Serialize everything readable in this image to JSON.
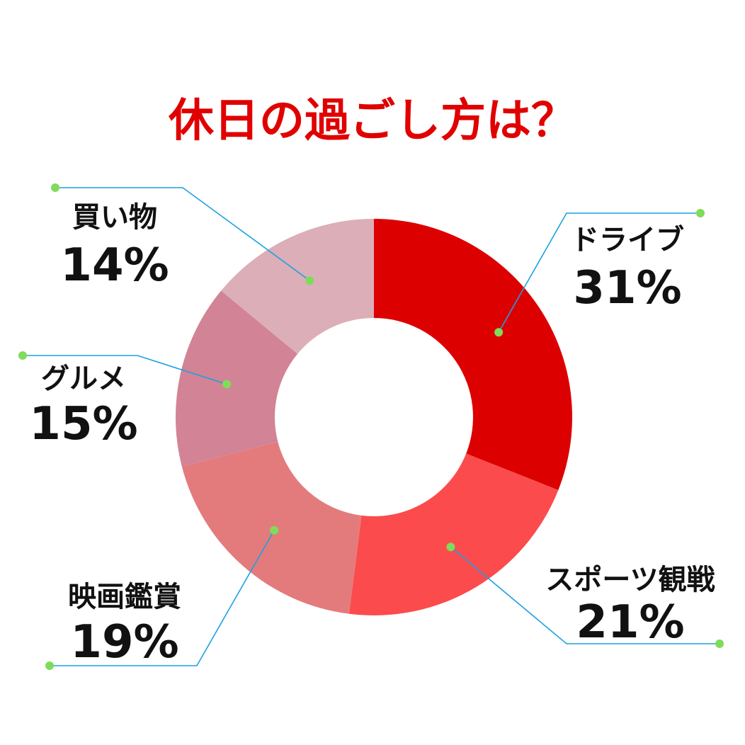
{
  "chart_data": {
    "type": "pie",
    "title": "休日の過ごし方は？",
    "categories": [
      "ドライブ",
      "スポーツ観戦",
      "映画鑑賞",
      "グルメ",
      "買い物"
    ],
    "values": [
      31,
      21,
      19,
      15,
      14
    ],
    "value_labels": [
      "31%",
      "21%",
      "19%",
      "15%",
      "14%"
    ],
    "colors": [
      "#dd0000",
      "#fc4b4d",
      "#e37b7c",
      "#d28396",
      "#dcaeb8"
    ],
    "donut": true,
    "start": "12 o'clock, clockwise"
  },
  "style": {
    "title_color": "#e00000",
    "label_color": "#111111",
    "leader_color": "#1ba1e2",
    "dot_color": "#7fdc5a"
  }
}
